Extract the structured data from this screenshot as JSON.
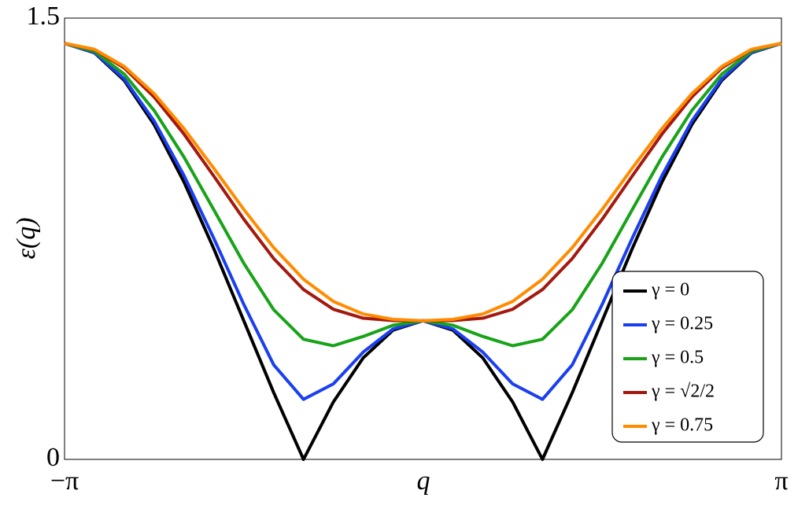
{
  "chart_data": {
    "type": "line",
    "xlabel": "q",
    "ylabel": "ε(q)",
    "x": [
      -3.1416,
      -2.8798,
      -2.618,
      -2.3562,
      -2.0944,
      -1.8326,
      -1.5708,
      -1.309,
      -1.0472,
      -0.7854,
      -0.5236,
      -0.2618,
      0,
      0.2618,
      0.5236,
      0.7854,
      1.0472,
      1.309,
      1.5708,
      1.8326,
      2.0944,
      2.3562,
      2.618,
      2.8798,
      3.1416
    ],
    "series": [
      {
        "name": "γ = 0",
        "color": "#000000",
        "values": [
          1.4142,
          1.3821,
          1.2879,
          1.138,
          0.9428,
          0.7154,
          0.4714,
          0.2274,
          0,
          0.1953,
          0.3451,
          0.4393,
          0.4714,
          0.4393,
          0.3451,
          0.1953,
          0,
          0.2274,
          0.4714,
          0.7154,
          0.9428,
          1.138,
          1.2879,
          1.3821,
          1.4142
        ]
      },
      {
        "name": "γ = 0.25",
        "color": "#1a3ff0",
        "values": [
          1.4142,
          1.3834,
          1.2933,
          1.1502,
          0.9646,
          0.7508,
          0.527,
          0.3218,
          0.2041,
          0.2567,
          0.3647,
          0.4435,
          0.4714,
          0.4435,
          0.3647,
          0.2567,
          0.2041,
          0.3218,
          0.527,
          0.7508,
          0.9646,
          1.1502,
          1.2933,
          1.3834,
          1.4142
        ]
      },
      {
        "name": "γ = 0.5",
        "color": "#18a318",
        "values": [
          1.4142,
          1.3875,
          1.3093,
          1.1859,
          1.0274,
          0.848,
          0.6667,
          0.509,
          0.4082,
          0.3863,
          0.4179,
          0.4559,
          0.4714,
          0.4559,
          0.4179,
          0.3863,
          0.4082,
          0.509,
          0.6667,
          0.848,
          1.0274,
          1.1859,
          1.3093,
          1.3875,
          1.4142
        ]
      },
      {
        "name": "γ = √2/2",
        "color": "#a3190f",
        "values": [
          1.4142,
          1.3928,
          1.3303,
          1.2318,
          1.1055,
          0.9625,
          0.8165,
          0.6829,
          0.5773,
          0.5102,
          0.4798,
          0.472,
          0.4714,
          0.472,
          0.4798,
          0.5102,
          0.5773,
          0.6829,
          0.8165,
          0.9625,
          1.1055,
          1.2318,
          1.3303,
          1.3928,
          1.4142
        ]
      },
      {
        "name": "γ = 0.75",
        "color": "#ff8c00",
        "values": [
          1.4142,
          1.3941,
          1.3355,
          1.2431,
          1.1242,
          0.9891,
          0.8498,
          0.7199,
          0.6124,
          0.5368,
          0.4941,
          0.4759,
          0.4714,
          0.4759,
          0.4941,
          0.5368,
          0.6124,
          0.7199,
          0.8498,
          0.9891,
          1.1242,
          1.2431,
          1.3355,
          1.3941,
          1.4142
        ]
      }
    ],
    "xlim": [
      -3.1416,
      3.1416
    ],
    "xticks": [
      {
        "value": -3.1416,
        "label": "−π"
      },
      {
        "value": 3.1416,
        "label": "π"
      }
    ],
    "ylim": [
      0,
      1.5
    ],
    "yticks": [
      0,
      1.5
    ],
    "legend": "lower right"
  }
}
